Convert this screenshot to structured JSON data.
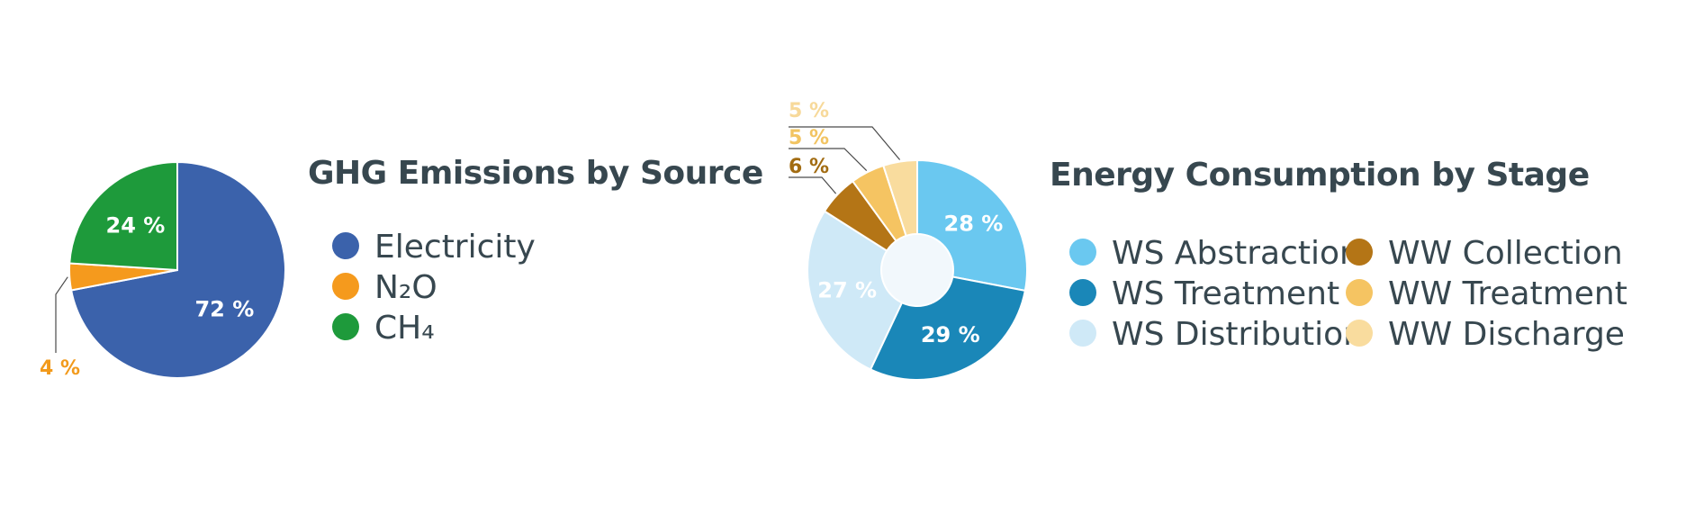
{
  "chart_data": [
    {
      "type": "pie",
      "title": "GHG Emissions by Source",
      "categories": [
        "Electricity",
        "N₂O",
        "CH₄"
      ],
      "values": [
        72,
        4,
        24
      ],
      "value_labels": [
        "72 %",
        "4 %",
        "24 %"
      ],
      "colors": [
        "#3b62ab",
        "#f59a1d",
        "#1e9a3b"
      ],
      "label_colors": [
        "#ffffff",
        "#f29a1b",
        "#ffffff"
      ],
      "legend": "right"
    },
    {
      "type": "pie",
      "variant": "donut",
      "title": "Energy Consumption by Stage",
      "categories": [
        "WS Abstraction",
        "WS Treatment",
        "WS Distribution",
        "WW Collection",
        "WW Treatment",
        "WW Discharge"
      ],
      "values": [
        28,
        29,
        27,
        6,
        5,
        5
      ],
      "value_labels": [
        "28 %",
        "29 %",
        "27 %",
        "6 %",
        "5 %",
        "5 %"
      ],
      "colors": [
        "#6ac8f0",
        "#1a87b8",
        "#cfe9f7",
        "#b47516",
        "#f5c462",
        "#f9dc9e"
      ],
      "label_colors": [
        "#ffffff",
        "#ffffff",
        "#ffffff",
        "#a26c12",
        "#f2c462",
        "#f7d99a"
      ],
      "legend": "right"
    }
  ]
}
